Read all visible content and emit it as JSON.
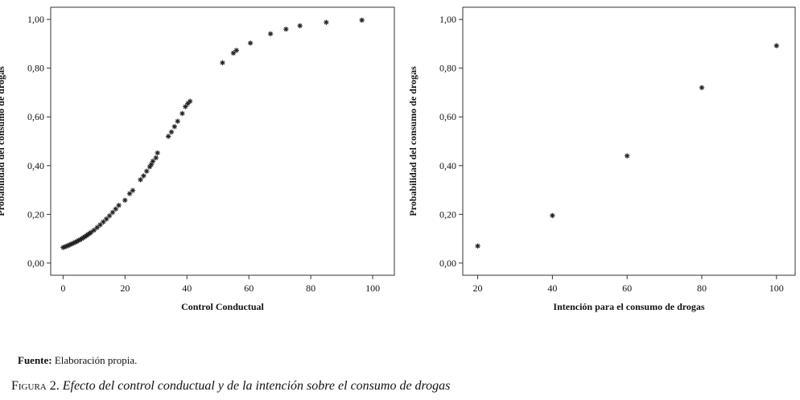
{
  "chart_data": [
    {
      "type": "scatter",
      "xlabel": "Control Conductual",
      "ylabel": "Probabilidad del consumo de drogas",
      "xlim": [
        -4,
        107
      ],
      "ylim": [
        -0.05,
        1.05
      ],
      "x_ticks": [
        "0",
        "20",
        "40",
        "60",
        "80",
        "100"
      ],
      "y_ticks": [
        "0,00",
        "0,20",
        "0,40",
        "0,60",
        "0,80",
        "1,00"
      ],
      "x_tick_values": [
        0,
        20,
        40,
        60,
        80,
        100
      ],
      "y_tick_values": [
        0,
        0.2,
        0.4,
        0.6,
        0.8,
        1.0
      ],
      "grid": false,
      "points": [
        [
          0,
          0.064
        ],
        [
          0.5,
          0.066
        ],
        [
          1,
          0.069
        ],
        [
          1.5,
          0.071
        ],
        [
          2,
          0.074
        ],
        [
          2.5,
          0.077
        ],
        [
          3,
          0.08
        ],
        [
          3.5,
          0.083
        ],
        [
          4,
          0.086
        ],
        [
          4.5,
          0.089
        ],
        [
          5,
          0.093
        ],
        [
          5.5,
          0.096
        ],
        [
          6,
          0.1
        ],
        [
          6.5,
          0.104
        ],
        [
          7,
          0.108
        ],
        [
          7.5,
          0.112
        ],
        [
          8,
          0.117
        ],
        [
          8.5,
          0.121
        ],
        [
          9,
          0.126
        ],
        [
          10,
          0.135
        ],
        [
          11,
          0.146
        ],
        [
          12,
          0.157
        ],
        [
          13,
          0.169
        ],
        [
          14,
          0.181
        ],
        [
          15,
          0.194
        ],
        [
          16,
          0.208
        ],
        [
          17,
          0.222
        ],
        [
          18,
          0.237
        ],
        [
          20,
          0.258
        ],
        [
          21.5,
          0.285
        ],
        [
          22.5,
          0.298
        ],
        [
          25,
          0.342
        ],
        [
          26,
          0.358
        ],
        [
          27,
          0.377
        ],
        [
          28,
          0.395
        ],
        [
          28.5,
          0.405
        ],
        [
          29,
          0.418
        ],
        [
          30,
          0.432
        ],
        [
          30.5,
          0.452
        ],
        [
          34,
          0.52
        ],
        [
          35,
          0.538
        ],
        [
          36,
          0.56
        ],
        [
          37,
          0.582
        ],
        [
          38.5,
          0.614
        ],
        [
          39.5,
          0.642
        ],
        [
          40.3,
          0.655
        ],
        [
          41,
          0.664
        ],
        [
          51.5,
          0.822
        ],
        [
          55,
          0.862
        ],
        [
          56,
          0.873
        ],
        [
          60.5,
          0.903
        ],
        [
          67,
          0.941
        ],
        [
          72,
          0.96
        ],
        [
          76.5,
          0.974
        ],
        [
          85,
          0.988
        ],
        [
          96.5,
          0.997
        ]
      ]
    },
    {
      "type": "scatter",
      "xlabel": "Intención para el consumo de drogas",
      "ylabel": "Probabilidad del consumo de drogas",
      "xlim": [
        16,
        105
      ],
      "ylim": [
        -0.05,
        1.05
      ],
      "x_ticks": [
        "20",
        "40",
        "60",
        "80",
        "100"
      ],
      "y_ticks": [
        "0,00",
        "0,20",
        "0,40",
        "0,60",
        "0,80",
        "1,00"
      ],
      "x_tick_values": [
        20,
        40,
        60,
        80,
        100
      ],
      "y_tick_values": [
        0,
        0.2,
        0.4,
        0.6,
        0.8,
        1.0
      ],
      "grid": false,
      "points": [
        [
          20,
          0.07
        ],
        [
          40,
          0.195
        ],
        [
          60,
          0.44
        ],
        [
          80,
          0.72
        ],
        [
          100,
          0.892
        ]
      ]
    }
  ],
  "source": {
    "label": "Fuente:",
    "text": "Elaboración propia."
  },
  "caption": {
    "label": "Figura 2.",
    "text": "Efecto del control conductual y de la intención sobre el consumo de drogas"
  }
}
